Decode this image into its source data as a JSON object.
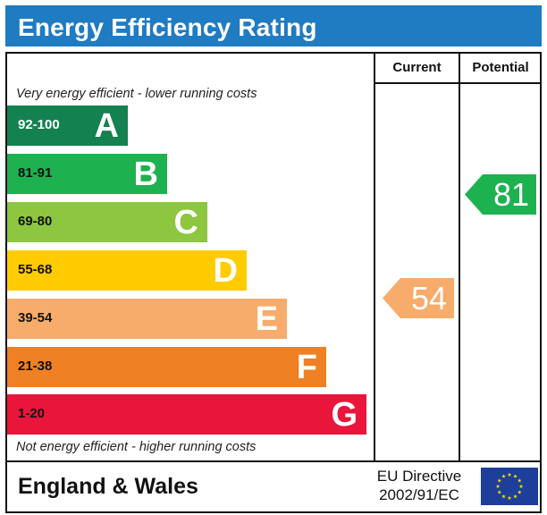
{
  "title": "Energy Efficiency Rating",
  "columns": {
    "current": "Current",
    "potential": "Potential"
  },
  "top_note": "Very energy efficient - lower running costs",
  "bottom_note": "Not energy efficient - higher running costs",
  "bands": [
    {
      "range": "92-100",
      "letter": "A",
      "color": "#138150"
    },
    {
      "range": "81-91",
      "letter": "B",
      "color": "#1eb150"
    },
    {
      "range": "69-80",
      "letter": "C",
      "color": "#8dc63f"
    },
    {
      "range": "55-68",
      "letter": "D",
      "color": "#ffcc00"
    },
    {
      "range": "39-54",
      "letter": "E",
      "color": "#f7ac6b"
    },
    {
      "range": "21-38",
      "letter": "F",
      "color": "#ef8023"
    },
    {
      "range": "1-20",
      "letter": "G",
      "color": "#e9153b"
    }
  ],
  "current_rating": {
    "value": "54",
    "band": "E",
    "color": "#f7ac6b"
  },
  "potential_rating": {
    "value": "81",
    "band": "B",
    "color": "#1eb150"
  },
  "footer": {
    "region": "England & Wales",
    "directive_line1": "EU Directive",
    "directive_line2": "2002/91/EC"
  },
  "flag": {
    "name": "eu-flag-icon",
    "background": "#1d3f9a",
    "star_color": "#ffdd00"
  }
}
